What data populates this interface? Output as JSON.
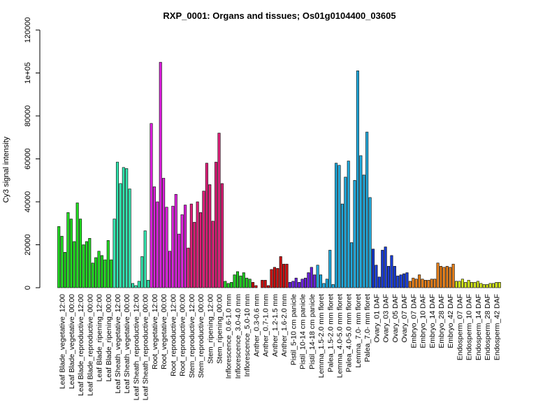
{
  "chart_data": {
    "type": "bar",
    "title": "RXP_0001: Organs and tissues; Os01g0104400_03605",
    "ylabel": "Cy3 signal intensity",
    "xlabel": "",
    "ylim": [
      0,
      120000
    ],
    "yticks": [
      0,
      20000,
      40000,
      60000,
      80000,
      100000,
      120000
    ],
    "ytick_labels": [
      "0",
      "20000",
      "40000",
      "60000",
      "80000",
      "1e+05",
      "120000"
    ],
    "grid": false,
    "legend": "none",
    "groups": [
      {
        "label": "Leaf Blade_vegetative_12:00",
        "color": "#22dd22",
        "values": [
          28500,
          24000,
          16500
        ]
      },
      {
        "label": "Leaf Blade_vegetative_00:00",
        "color": "#22dd22",
        "values": [
          35000,
          32000,
          21500
        ]
      },
      {
        "label": "Leaf Blade_reproductive_12:00",
        "color": "#22dd22",
        "values": [
          39500,
          32000,
          20000
        ]
      },
      {
        "label": "Leaf Blade_reproductive_00:00",
        "color": "#22dd22",
        "values": [
          21500,
          23000,
          11500
        ]
      },
      {
        "label": "Leaf Blade_ripening_12:00",
        "color": "#22dd22",
        "values": [
          14000,
          17000,
          15000
        ]
      },
      {
        "label": "Leaf Blade_ripening_00:00",
        "color": "#22dd22",
        "values": [
          13000,
          22000,
          13000
        ]
      },
      {
        "label": "Leaf Sheath_vegetative_12:00",
        "color": "#33e8b0",
        "values": [
          32000,
          58500,
          48500
        ]
      },
      {
        "label": "Leaf Sheath_vegetative_00:00",
        "color": "#33e8b0",
        "values": [
          56000,
          55500,
          46000
        ]
      },
      {
        "label": "Leaf Sheath_reproductive_12:00",
        "color": "#33e8b0",
        "values": [
          2000,
          1000,
          3000
        ]
      },
      {
        "label": "Leaf Sheath_reproductive_00:00",
        "color": "#33e8b0",
        "values": [
          14500,
          26500,
          3500
        ]
      },
      {
        "label": "Root_vegetative_12:00",
        "color": "#dd22dd",
        "values": [
          76500,
          47000,
          40000
        ]
      },
      {
        "label": "Root_vegetative_00:00",
        "color": "#dd22dd",
        "values": [
          105000,
          51000,
          37500
        ]
      },
      {
        "label": "Root_reproductive_12:00",
        "color": "#dd22dd",
        "values": [
          17000,
          38000,
          43500
        ]
      },
      {
        "label": "Root_reproductive_00:00",
        "color": "#dd22dd",
        "values": [
          25000,
          34000,
          38500
        ]
      },
      {
        "label": "Stem_reproductive_12:00",
        "color": "#e0207a",
        "values": [
          18500,
          39000,
          30500
        ]
      },
      {
        "label": "Stem_reproductive_00:00",
        "color": "#e0207a",
        "values": [
          40000,
          35000,
          45000
        ]
      },
      {
        "label": "Stem_ripening_12:00",
        "color": "#e0207a",
        "values": [
          58000,
          48000,
          31000
        ]
      },
      {
        "label": "Stem_ripening_00:00",
        "color": "#e0207a",
        "values": [
          58500,
          72000,
          48500
        ]
      },
      {
        "label": "Inflorescence_0.6-1.0 mm",
        "color": "#22cc22",
        "values": [
          3000,
          2000,
          2500
        ]
      },
      {
        "label": "Inflorescence_3.0-4.0 mm",
        "color": "#22cc22",
        "values": [
          6000,
          7500,
          5500
        ]
      },
      {
        "label": "Inflorescence_5.0-10 mm",
        "color": "#22cc22",
        "values": [
          7000,
          4500,
          4000
        ]
      },
      {
        "label": "Anther_0.3-0.6 mm",
        "color": "#cc1111",
        "values": [
          2500,
          1000,
          0
        ]
      },
      {
        "label": "Anther_0.7-1.0 mm",
        "color": "#cc1111",
        "values": [
          3500,
          3500,
          1000
        ]
      },
      {
        "label": "Anther_1.2-1.5 mm",
        "color": "#cc1111",
        "values": [
          8500,
          9500,
          9000
        ]
      },
      {
        "label": "Anther_1.6-2.0 mm",
        "color": "#cc1111",
        "values": [
          14500,
          11000,
          11000
        ]
      },
      {
        "label": "Pistil_5-10 cm panicle",
        "color": "#6a22dd",
        "values": [
          2500,
          3000,
          4500
        ]
      },
      {
        "label": "Pistil_10-14 cm panicle",
        "color": "#6a22dd",
        "values": [
          2500,
          4000,
          4500
        ]
      },
      {
        "label": "Pistil_14-18 cm panicle",
        "color": "#6a22dd",
        "values": [
          7000,
          9500,
          6000
        ]
      },
      {
        "label": "Lemma_1.5-2.0 mm floret",
        "color": "#22aadd",
        "values": [
          10500,
          6000,
          2000
        ]
      },
      {
        "label": "Palea_1.5-2.0 mm floret",
        "color": "#22aadd",
        "values": [
          4000,
          17500,
          1500
        ]
      },
      {
        "label": "Lemma_4.0-5.0 mm floret",
        "color": "#22aadd",
        "values": [
          58000,
          57000,
          39000
        ]
      },
      {
        "label": "Palea_4.0-5.0 mm floret",
        "color": "#22aadd",
        "values": [
          51500,
          59000,
          21000
        ]
      },
      {
        "label": "Lemma_7.0- mm floret",
        "color": "#22aadd",
        "values": [
          50000,
          101000,
          61500
        ]
      },
      {
        "label": "Palea_7.0- mm floret",
        "color": "#22aadd",
        "values": [
          52500,
          72500,
          42000
        ]
      },
      {
        "label": "Ovary_01 DAF",
        "color": "#1a3ed6",
        "values": [
          18000,
          10500,
          5000
        ]
      },
      {
        "label": "Ovary_03 DAF",
        "color": "#1a3ed6",
        "values": [
          17500,
          19000,
          10000
        ]
      },
      {
        "label": "Ovary_05 DAF",
        "color": "#1a3ed6",
        "values": [
          15000,
          10000,
          5500
        ]
      },
      {
        "label": "Ovary_07 DAF",
        "color": "#1a3ed6",
        "values": [
          6000,
          6500,
          7000
        ]
      },
      {
        "label": "Embryo_07 DAF",
        "color": "#e8801a",
        "values": [
          3000,
          4500,
          4000
        ]
      },
      {
        "label": "Embryo_10 DAF",
        "color": "#e8801a",
        "values": [
          6000,
          4000,
          3500
        ]
      },
      {
        "label": "Embryo_14 DAF",
        "color": "#e8801a",
        "values": [
          3500,
          4000,
          4000
        ]
      },
      {
        "label": "Embryo_28 DAF",
        "color": "#e8801a",
        "values": [
          11500,
          10000,
          9500
        ]
      },
      {
        "label": "Embryo_42 DAF",
        "color": "#e8801a",
        "values": [
          10000,
          9500,
          11000
        ]
      },
      {
        "label": "Endosperm_07 DAF",
        "color": "#d4e81a",
        "values": [
          3000,
          3000,
          4000
        ]
      },
      {
        "label": "Endosperm_10 DAF",
        "color": "#d4e81a",
        "values": [
          2500,
          3500,
          2500
        ]
      },
      {
        "label": "Endosperm_14 DAF",
        "color": "#d4e81a",
        "values": [
          2500,
          3000,
          2000
        ]
      },
      {
        "label": "Endosperm_28 DAF",
        "color": "#d4e81a",
        "values": [
          1500,
          1500,
          2000
        ]
      },
      {
        "label": "Endosperm_42 DAF",
        "color": "#d4e81a",
        "values": [
          2000,
          2500,
          2500
        ]
      }
    ]
  }
}
